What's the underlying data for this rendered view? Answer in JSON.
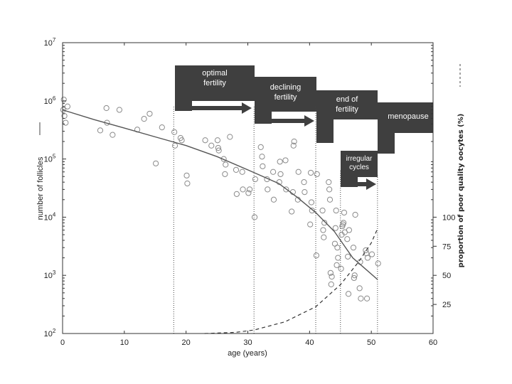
{
  "chart_data": {
    "type": "scatter",
    "xlabel": "age (years)",
    "ylabel": "number of follicles",
    "y2label": "proportion of poor quality oocytes (%)",
    "xlim": [
      0,
      60
    ],
    "ylim_log10": [
      2,
      7
    ],
    "y2lim": [
      0,
      100
    ],
    "y_scale": "log",
    "grid": false,
    "x_ticks": [
      "0",
      "10",
      "20",
      "30",
      "40",
      "50",
      "60"
    ],
    "y_tick_exponents": [
      "2",
      "3",
      "4",
      "5",
      "6",
      "7"
    ],
    "y2_ticks": [
      "25",
      "50",
      "75",
      "100"
    ],
    "series": [
      {
        "style": "circle-markers",
        "points": [
          [
            0.1,
            700000
          ],
          [
            0.2,
            1050000
          ],
          [
            0.3,
            550000
          ],
          [
            0.5,
            420000
          ],
          [
            0.8,
            800000
          ],
          [
            6.1,
            310000
          ],
          [
            7.1,
            750000
          ],
          [
            7.2,
            420000
          ],
          [
            8.1,
            260000
          ],
          [
            9.2,
            700000
          ],
          [
            12.1,
            320000
          ],
          [
            13.2,
            490000
          ],
          [
            14.1,
            600000
          ],
          [
            15.1,
            84000
          ],
          [
            16.1,
            350000
          ],
          [
            18.1,
            290000
          ],
          [
            18.2,
            170000
          ],
          [
            19.1,
            230000
          ],
          [
            19.3,
            210000
          ],
          [
            20.1,
            52000
          ],
          [
            20.2,
            38000
          ],
          [
            23.1,
            210000
          ],
          [
            24.1,
            170000
          ],
          [
            25.1,
            210000
          ],
          [
            25.2,
            155000
          ],
          [
            25.3,
            140000
          ],
          [
            26.1,
            100000
          ],
          [
            26.3,
            55000
          ],
          [
            26.4,
            80000
          ],
          [
            27.1,
            240000
          ],
          [
            28.1,
            65000
          ],
          [
            28.2,
            25000
          ],
          [
            29.1,
            60000
          ],
          [
            29.2,
            30000
          ],
          [
            30.1,
            26000
          ],
          [
            30.3,
            30000
          ],
          [
            31.1,
            10000
          ],
          [
            31.2,
            45000
          ],
          [
            32.1,
            160000
          ],
          [
            32.3,
            110000
          ],
          [
            32.4,
            75000
          ],
          [
            33.1,
            45000
          ],
          [
            33.2,
            30000
          ],
          [
            34.1,
            60000
          ],
          [
            34.2,
            20000
          ],
          [
            35.1,
            40000
          ],
          [
            35.2,
            90000
          ],
          [
            35.3,
            55000
          ],
          [
            36.1,
            95000
          ],
          [
            36.2,
            30000
          ],
          [
            37.1,
            12500
          ],
          [
            37.3,
            27000
          ],
          [
            37.4,
            170000
          ],
          [
            37.5,
            200000
          ],
          [
            38.1,
            20000
          ],
          [
            38.2,
            60000
          ],
          [
            39.1,
            40000
          ],
          [
            39.2,
            27000
          ],
          [
            40.1,
            7500
          ],
          [
            40.2,
            58000
          ],
          [
            40.3,
            18000
          ],
          [
            40.4,
            13000
          ],
          [
            41.1,
            2200
          ],
          [
            41.2,
            55000
          ],
          [
            42.1,
            13000
          ],
          [
            42.2,
            6000
          ],
          [
            42.3,
            4500
          ],
          [
            42.4,
            8000
          ],
          [
            43.1,
            40000
          ],
          [
            43.2,
            30000
          ],
          [
            43.3,
            20000
          ],
          [
            43.4,
            1100
          ],
          [
            43.5,
            700
          ],
          [
            43.6,
            950
          ],
          [
            44.1,
            3500
          ],
          [
            44.2,
            6500
          ],
          [
            44.3,
            13000
          ],
          [
            44.4,
            1500
          ],
          [
            44.5,
            3000
          ],
          [
            44.6,
            2000
          ],
          [
            45.1,
            1300
          ],
          [
            45.2,
            5000
          ],
          [
            45.3,
            7000
          ],
          [
            45.4,
            7500
          ],
          [
            45.5,
            8000
          ],
          [
            45.6,
            12000
          ],
          [
            45.7,
            5500
          ],
          [
            46.1,
            4200
          ],
          [
            46.2,
            2100
          ],
          [
            46.3,
            480
          ],
          [
            46.4,
            6000
          ],
          [
            47.1,
            3000
          ],
          [
            47.2,
            900
          ],
          [
            47.3,
            1000
          ],
          [
            47.4,
            11000
          ],
          [
            48.1,
            600
          ],
          [
            48.2,
            1700
          ],
          [
            48.3,
            400
          ],
          [
            49.1,
            2700
          ],
          [
            49.2,
            2400
          ],
          [
            49.3,
            400
          ],
          [
            49.4,
            2000
          ],
          [
            50.1,
            2300
          ],
          [
            51.1,
            1600
          ]
        ]
      },
      {
        "style": "solid-line",
        "x": [
          0,
          5,
          10,
          15,
          20,
          25,
          30,
          35,
          38,
          41,
          44,
          47,
          51
        ],
        "y": [
          700000,
          480000,
          340000,
          240000,
          170000,
          110000,
          65000,
          38000,
          22000,
          12000,
          5700,
          2000,
          850
        ]
      },
      {
        "style": "dashed-line",
        "axis": "y2",
        "x": [
          23,
          28,
          31,
          36,
          41,
          45,
          48,
          50,
          51
        ],
        "y": [
          0,
          1,
          3,
          10,
          23,
          42,
          62,
          78,
          90
        ]
      }
    ],
    "annotations": [
      {
        "label": "optimal\nfertility",
        "age_range": [
          18,
          31
        ]
      },
      {
        "label": "declining\nfertility",
        "age_range": [
          31,
          41
        ]
      },
      {
        "label": "end of\nfertility",
        "age_range": [
          41,
          51
        ]
      },
      {
        "label": "menopause",
        "age_range": [
          51,
          60
        ]
      },
      {
        "label": "irregular\ncycles",
        "age_range": [
          45,
          51
        ]
      }
    ],
    "colors": {
      "markers": "#8a8a8a",
      "curve": "#555555",
      "stage_boxes": "#3f3f3f"
    }
  }
}
